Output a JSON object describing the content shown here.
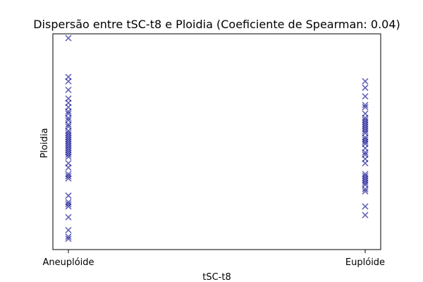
{
  "chart_data": {
    "type": "scatter",
    "title": "Dispersão entre tSC-t8 e Ploidia (Coeficiente de Spearman: 0.04)",
    "xlabel": "tSC-t8",
    "ylabel": "Ploidia",
    "categories": [
      "Aneuplóide",
      "Euplóide"
    ],
    "y_ticks_visible": false,
    "grid": false,
    "legend": "none",
    "marker": "x",
    "marker_color": "#00008b",
    "marker_alpha": 0.6,
    "ylim": [
      0,
      1
    ],
    "series": [
      {
        "category": "Aneuplóide",
        "y": [
          0.98,
          0.8,
          0.78,
          0.74,
          0.7,
          0.68,
          0.66,
          0.64,
          0.63,
          0.61,
          0.6,
          0.58,
          0.57,
          0.55,
          0.54,
          0.53,
          0.52,
          0.51,
          0.5,
          0.49,
          0.48,
          0.47,
          0.46,
          0.45,
          0.44,
          0.43,
          0.4,
          0.38,
          0.35,
          0.34,
          0.33,
          0.25,
          0.22,
          0.21,
          0.2,
          0.15,
          0.09,
          0.06,
          0.05
        ]
      },
      {
        "category": "Euplóide",
        "y": [
          0.78,
          0.75,
          0.71,
          0.67,
          0.66,
          0.63,
          0.61,
          0.6,
          0.59,
          0.58,
          0.57,
          0.56,
          0.55,
          0.54,
          0.52,
          0.51,
          0.5,
          0.49,
          0.47,
          0.45,
          0.44,
          0.42,
          0.4,
          0.35,
          0.34,
          0.33,
          0.32,
          0.31,
          0.3,
          0.28,
          0.27,
          0.2,
          0.16
        ]
      }
    ]
  }
}
